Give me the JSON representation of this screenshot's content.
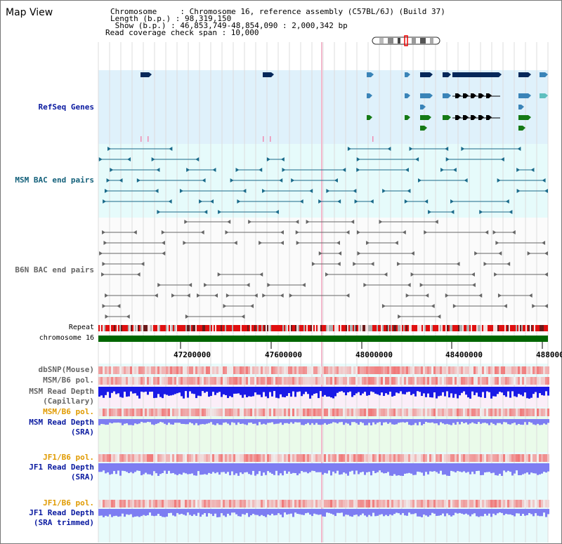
{
  "page": {
    "title": "Map View"
  },
  "info": {
    "chromosome": "Chromosome     : Chromosome 16, reference assembly (C57BL/6J) (Build 37)",
    "length": "Length (b.p.) : 98,319,150",
    "show": " Show (b.p.) : 46,853,749-48,854,090 : 2,000,342 bp",
    "coverage": "Read coverage check span : 10,000"
  },
  "tracks": {
    "refseq": "RefSeq Genes",
    "msm_bac": "MSM BAC end pairs",
    "b6n_bac": "B6N BAC end pairs",
    "repeat": "Repeat",
    "chromosome": "chromosome 16",
    "dbsnp": "dbSNP(Mouse)",
    "msm_pol_1": "MSM/B6 pol.",
    "msm_depth_cap": "MSM Read Depth\n(Capillary)",
    "msm_pol_2": "MSM/B6 pol.",
    "msm_depth_sra": "MSM Read Depth\n(SRA)",
    "jf1_pol_1": "JF1/B6 pol.",
    "jf1_depth_sra": "JF1 Read Depth\n(SRA)",
    "jf1_pol_2": "JF1/B6 pol.",
    "jf1_depth_trim": "JF1 Read Depth\n(SRA trimmed)"
  },
  "axis": {
    "ticks": [
      "47200000",
      "47600000",
      "48000000",
      "48400000",
      "488000"
    ]
  },
  "colors": {
    "refseq_bg": "#dff1fb",
    "msm_bg": "#e6fbfb",
    "label_blue": "#0a1aa0",
    "label_teal": "#13607a",
    "label_gray": "#666666",
    "label_orange": "#e09a00",
    "chrom_green": "#006600",
    "repeat_red": "#e01010",
    "depth_blue": "#1a1ae6",
    "depth_light": "#7d7df2"
  }
}
